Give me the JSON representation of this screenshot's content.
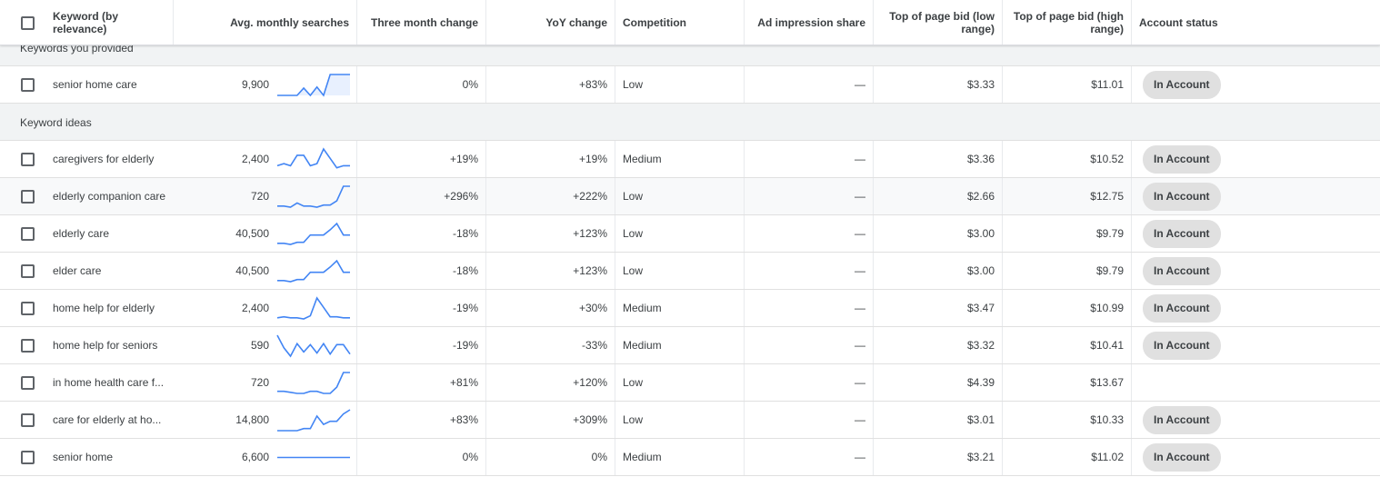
{
  "header": {
    "columns": [
      "Keyword (by relevance)",
      "Avg. monthly searches",
      "Three month change",
      "YoY change",
      "Competition",
      "Ad impression share",
      "Top of page bid (low range)",
      "Top of page bid (high range)",
      "Account status"
    ]
  },
  "groups": [
    {
      "label": "Keywords you provided",
      "rows": [
        {
          "keyword": "senior home care",
          "searches": "9,900",
          "trend": [
            0,
            0,
            0,
            0,
            35,
            0,
            40,
            0,
            100,
            100,
            100,
            100
          ],
          "three_month": "0%",
          "yoy": "+83%",
          "competition": "Low",
          "ad_share": "—",
          "bid_low": "$3.33",
          "bid_high": "$11.01",
          "status": "In Account"
        }
      ]
    },
    {
      "label": "Keyword ideas",
      "rows": [
        {
          "keyword": "caregivers for elderly",
          "searches": "2,400",
          "trend": [
            20,
            30,
            20,
            70,
            70,
            20,
            30,
            100,
            55,
            10,
            20,
            20
          ],
          "three_month": "+19%",
          "yoy": "+19%",
          "competition": "Medium",
          "ad_share": "—",
          "bid_low": "$3.36",
          "bid_high": "$10.52",
          "status": "In Account"
        },
        {
          "keyword": "elderly companion care",
          "searches": "720",
          "trend": [
            5,
            5,
            0,
            20,
            5,
            5,
            0,
            10,
            10,
            30,
            100,
            100
          ],
          "three_month": "+296%",
          "yoy": "+222%",
          "competition": "Low",
          "ad_share": "—",
          "bid_low": "$2.66",
          "bid_high": "$12.75",
          "status": "In Account"
        },
        {
          "keyword": "elderly care",
          "searches": "40,500",
          "trend": [
            5,
            5,
            0,
            10,
            10,
            45,
            45,
            45,
            70,
            100,
            45,
            45
          ],
          "three_month": "-18%",
          "yoy": "+123%",
          "competition": "Low",
          "ad_share": "—",
          "bid_low": "$3.00",
          "bid_high": "$9.79",
          "status": "In Account"
        },
        {
          "keyword": "elder care",
          "searches": "40,500",
          "trend": [
            5,
            5,
            0,
            10,
            10,
            45,
            45,
            45,
            70,
            100,
            45,
            45
          ],
          "three_month": "-18%",
          "yoy": "+123%",
          "competition": "Low",
          "ad_share": "—",
          "bid_low": "$3.00",
          "bid_high": "$9.79",
          "status": "In Account"
        },
        {
          "keyword": "home help for elderly",
          "searches": "2,400",
          "trend": [
            5,
            10,
            5,
            5,
            0,
            15,
            100,
            55,
            10,
            10,
            5,
            5
          ],
          "three_month": "-19%",
          "yoy": "+30%",
          "competition": "Medium",
          "ad_share": "—",
          "bid_low": "$3.47",
          "bid_high": "$10.99",
          "status": "In Account"
        },
        {
          "keyword": "home help for seniors",
          "searches": "590",
          "trend": [
            100,
            40,
            0,
            60,
            20,
            55,
            15,
            60,
            10,
            55,
            55,
            10
          ],
          "three_month": "-19%",
          "yoy": "-33%",
          "competition": "Medium",
          "ad_share": "—",
          "bid_low": "$3.32",
          "bid_high": "$10.41",
          "status": "In Account"
        },
        {
          "keyword": "in home health care f...",
          "searches": "720",
          "trend": [
            10,
            10,
            5,
            0,
            0,
            10,
            10,
            0,
            0,
            30,
            100,
            100
          ],
          "three_month": "+81%",
          "yoy": "+120%",
          "competition": "Low",
          "ad_share": "—",
          "bid_low": "$4.39",
          "bid_high": "$13.67",
          "status": null
        },
        {
          "keyword": "care for elderly at ho...",
          "searches": "14,800",
          "trend": [
            0,
            0,
            0,
            0,
            10,
            10,
            70,
            30,
            45,
            45,
            80,
            100
          ],
          "three_month": "+83%",
          "yoy": "+309%",
          "competition": "Low",
          "ad_share": "—",
          "bid_low": "$3.01",
          "bid_high": "$10.33",
          "status": "In Account"
        },
        {
          "keyword": "senior home",
          "searches": "6,600",
          "trend": [
            50,
            50,
            50,
            50,
            50,
            50,
            50,
            50,
            50,
            50,
            50,
            50
          ],
          "three_month": "0%",
          "yoy": "0%",
          "competition": "Medium",
          "ad_share": "—",
          "bid_low": "$3.21",
          "bid_high": "$11.02",
          "status": "In Account"
        }
      ]
    }
  ]
}
